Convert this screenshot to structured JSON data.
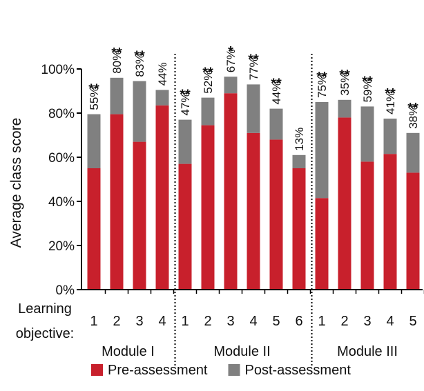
{
  "chart_data": {
    "type": "bar",
    "stacked": true,
    "ylabel": "Average class score",
    "ylim": [
      0,
      100
    ],
    "yticks": [
      "0%",
      "20%",
      "40%",
      "60%",
      "80%",
      "100%"
    ],
    "x_row_label_line1": "Learning",
    "x_row_label_line2": "objective:",
    "legend_placement": "bottom",
    "series": [
      {
        "name": "Pre-assessment",
        "color": "#c8202c"
      },
      {
        "name": "Post-assessment",
        "color": "#808080"
      }
    ],
    "modules": [
      {
        "name": "Module I",
        "objectives": [
          {
            "label": "1",
            "pre": 55,
            "post": 79.5,
            "gain": "55%",
            "sig": "**"
          },
          {
            "label": "2",
            "pre": 79.5,
            "post": 96,
            "gain": "80%",
            "sig": "**"
          },
          {
            "label": "3",
            "pre": 67,
            "post": 94.5,
            "gain": "83%",
            "sig": "**"
          },
          {
            "label": "4",
            "pre": 83.5,
            "post": 90.5,
            "gain": "44%",
            "sig": ""
          }
        ]
      },
      {
        "name": "Module II",
        "objectives": [
          {
            "label": "1",
            "pre": 57,
            "post": 77,
            "gain": "47%",
            "sig": "**"
          },
          {
            "label": "2",
            "pre": 74.5,
            "post": 87,
            "gain": "52%",
            "sig": "**"
          },
          {
            "label": "3",
            "pre": 89,
            "post": 96.5,
            "gain": "67%",
            "sig": "*"
          },
          {
            "label": "4",
            "pre": 71,
            "post": 93,
            "gain": "77%",
            "sig": "**"
          },
          {
            "label": "5",
            "pre": 68,
            "post": 82,
            "gain": "44%",
            "sig": "**"
          },
          {
            "label": "6",
            "pre": 55,
            "post": 61,
            "gain": "13%",
            "sig": ""
          }
        ]
      },
      {
        "name": "Module III",
        "objectives": [
          {
            "label": "1",
            "pre": 41.5,
            "post": 85,
            "gain": "75%",
            "sig": "**"
          },
          {
            "label": "2",
            "pre": 78,
            "post": 86,
            "gain": "35%",
            "sig": "**"
          },
          {
            "label": "3",
            "pre": 58,
            "post": 83,
            "gain": "59%",
            "sig": "**"
          },
          {
            "label": "4",
            "pre": 61.5,
            "post": 77.5,
            "gain": "41%",
            "sig": "**"
          },
          {
            "label": "5",
            "pre": 53,
            "post": 71,
            "gain": "38%",
            "sig": "**"
          }
        ]
      }
    ]
  }
}
